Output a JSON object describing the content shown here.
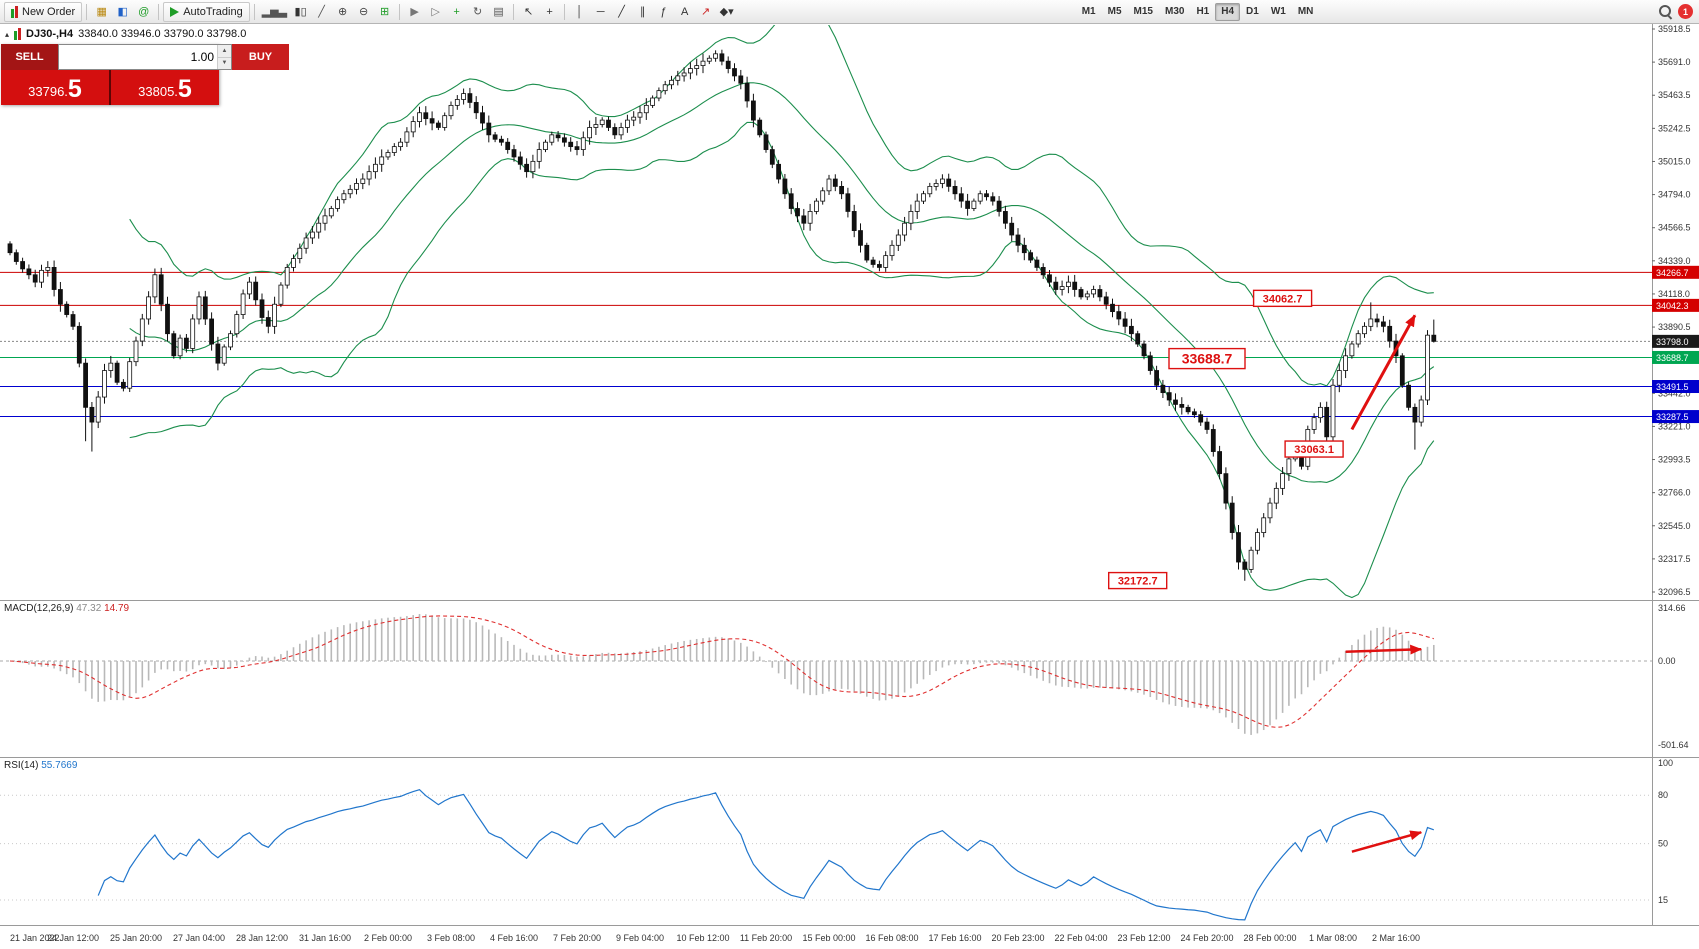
{
  "toolbar": {
    "new_order_label": "New Order",
    "autotrading_label": "AutoTrading",
    "timeframes": [
      "M1",
      "M5",
      "M15",
      "M30",
      "H1",
      "H4",
      "D1",
      "W1",
      "MN"
    ],
    "active_timeframe": "H4",
    "notification_count": "1",
    "icon_groups": {
      "tools": [
        {
          "name": "toolbox-icon",
          "glyph": "▦",
          "color": "#b8860b"
        },
        {
          "name": "navigator-icon",
          "glyph": "◧",
          "color": "#2061c8"
        },
        {
          "name": "expert-advisors-icon",
          "glyph": "@",
          "color": "#1f9d27"
        }
      ],
      "chart_types": [
        {
          "name": "bar-chart-icon",
          "glyph": "▂▅▃",
          "color": "#555555"
        },
        {
          "name": "candlestick-chart-icon",
          "glyph": "▮▯",
          "color": "#333333"
        },
        {
          "name": "line-chart-icon",
          "glyph": "╱",
          "color": "#555555"
        },
        {
          "name": "zoom-in-icon",
          "glyph": "⊕",
          "color": "#444444"
        },
        {
          "name": "zoom-out-icon",
          "glyph": "⊖",
          "color": "#444444"
        },
        {
          "name": "tile-windows-icon",
          "glyph": "⊞",
          "color": "#1f9d27"
        }
      ],
      "navigation": [
        {
          "name": "auto-scroll-icon",
          "glyph": "▶",
          "color": "#777777"
        },
        {
          "name": "chart-shift-icon",
          "glyph": "▷",
          "color": "#777777"
        },
        {
          "name": "new-chart-icon",
          "glyph": "+",
          "color": "#1f9d27"
        },
        {
          "name": "profiles-icon",
          "glyph": "↻",
          "color": "#555555"
        },
        {
          "name": "templates-icon",
          "glyph": "▤",
          "color": "#555555"
        }
      ],
      "cursor": [
        {
          "name": "cursor-icon",
          "glyph": "↖",
          "color": "#333333"
        },
        {
          "name": "crosshair-icon",
          "glyph": "+",
          "color": "#333333"
        }
      ],
      "drawing": [
        {
          "name": "vertical-line-icon",
          "glyph": "│",
          "color": "#333333"
        },
        {
          "name": "horizontal-line-icon",
          "glyph": "─",
          "color": "#333333"
        },
        {
          "name": "trendline-icon",
          "glyph": "╱",
          "color": "#333333"
        },
        {
          "name": "channel-icon",
          "glyph": "∥",
          "color": "#333333"
        },
        {
          "name": "fibonacci-icon",
          "glyph": "ƒ",
          "color": "#333333"
        },
        {
          "name": "text-icon",
          "glyph": "A",
          "color": "#333333"
        },
        {
          "name": "arrows-icon",
          "glyph": "↗",
          "color": "#cc2222"
        },
        {
          "name": "shapes-icon",
          "glyph": "◆▾",
          "color": "#333333"
        }
      ]
    }
  },
  "chart_title": {
    "collapse_icon": "▴",
    "symbol_period": "DJ30-,H4",
    "ohlc_values": "33840.0 33946.0 33790.0 33798.0"
  },
  "trade_panel": {
    "sell_label": "SELL",
    "buy_label": "BUY",
    "volume": "1.00",
    "sell_price": "33796.",
    "sell_price_big": "5",
    "buy_price": "33805.",
    "buy_price_big": "5"
  },
  "price_axis": {
    "top_value": 35918.5,
    "bottom_value": 32096.5,
    "labels": [
      "35918.5",
      "35691.0",
      "35463.5",
      "35242.5",
      "35015.0",
      "34794.0",
      "34566.5",
      "34339.0",
      "34118.0",
      "33890.5",
      "33669.0",
      "33442.0",
      "33221.0",
      "32993.5",
      "32766.0",
      "32545.0",
      "32317.5",
      "32096.5"
    ]
  },
  "levels": [
    {
      "value": "34266.7",
      "price": 34266.7,
      "line_color": "#cc0000",
      "badge_color": "#d40000"
    },
    {
      "value": "34042.3",
      "price": 34042.3,
      "line_color": "#cc0000",
      "badge_color": "#d40000"
    },
    {
      "value": "33688.7",
      "price": 33688.7,
      "line_color": "#00a651",
      "badge_color": "#00a651"
    },
    {
      "value": "33491.5",
      "price": 33491.5,
      "line_color": "#0000d0",
      "badge_color": "#0000cc"
    },
    {
      "value": "33287.5",
      "price": 33287.5,
      "line_color": "#0000d0",
      "badge_color": "#0000cc"
    }
  ],
  "current_price": {
    "value": "33798.0",
    "price": 33798.0,
    "badge_color": "#1a1a1a"
  },
  "annotations": [
    {
      "text": "34062.7",
      "bar": 202,
      "price": 34090,
      "large": false
    },
    {
      "text": "33688.7",
      "bar": 190,
      "price": 33681,
      "large": true
    },
    {
      "text": "33063.1",
      "bar": 207,
      "price": 33067,
      "large": false
    },
    {
      "text": "32172.7",
      "bar": 179,
      "price": 32174,
      "large": false
    }
  ],
  "arrows": {
    "color": "#e01010",
    "main": {
      "bar1": 213,
      "price1": 33200,
      "bar2": 223,
      "price2": 33975
    },
    "macd": {
      "bar1": 212,
      "value1": 55,
      "bar2": 224,
      "value2": 70
    },
    "rsi": {
      "bar1": 213,
      "value1": 45,
      "bar2": 224,
      "value2": 57
    }
  },
  "macd_pane": {
    "label": "MACD(12,26,9)",
    "main_value": "47.32",
    "signal_value": "14.79",
    "axis_labels": [
      "314.66",
      "0.00",
      "-501.64"
    ],
    "axis_values": [
      314.66,
      0,
      -501.64
    ]
  },
  "rsi_pane": {
    "label": "RSI(14)",
    "value": "55.7669",
    "axis_labels": [
      "100",
      "80",
      "50",
      "15"
    ],
    "axis_values": [
      100,
      80,
      50,
      15
    ],
    "level_lines": [
      80,
      50,
      15
    ]
  },
  "time_axis": {
    "labels": [
      "21 Jan 2022",
      "24 Jan 12:00",
      "25 Jan 20:00",
      "27 Jan 04:00",
      "28 Jan 12:00",
      "31 Jan 16:00",
      "2 Feb 00:00",
      "3 Feb 08:00",
      "4 Feb 16:00",
      "7 Feb 20:00",
      "9 Feb 04:00",
      "10 Feb 12:00",
      "11 Feb 20:00",
      "15 Feb 00:00",
      "16 Feb 08:00",
      "17 Feb 16:00",
      "20 Feb 23:00",
      "22 Feb 04:00",
      "23 Feb 12:00",
      "24 Feb 20:00",
      "28 Feb 00:00",
      "1 Mar 08:00",
      "2 Mar 16:00"
    ],
    "bars_per_label": 10
  },
  "chart_data": {
    "type": "candlestick",
    "symbol": "DJ30-",
    "timeframe": "H4",
    "title": "DJ30-,H4",
    "last_bar_ohlc": {
      "open": 33840.0,
      "high": 33946.0,
      "low": 33790.0,
      "close": 33798.0
    },
    "ylim": [
      32096.5,
      35918.5
    ],
    "closes": [
      34400,
      34340,
      34290,
      34250,
      34200,
      34280,
      34300,
      34150,
      34050,
      33980,
      33900,
      33650,
      33350,
      33250,
      33420,
      33600,
      33650,
      33520,
      33480,
      33660,
      33800,
      33950,
      34100,
      34250,
      34050,
      33850,
      33700,
      33820,
      33750,
      33950,
      34100,
      33950,
      33780,
      33650,
      33760,
      33850,
      33980,
      34120,
      34200,
      34080,
      33960,
      33900,
      34050,
      34180,
      34300,
      34360,
      34430,
      34500,
      34540,
      34600,
      34650,
      34700,
      34760,
      34800,
      34830,
      34870,
      34900,
      34950,
      35000,
      35050,
      35080,
      35120,
      35150,
      35220,
      35290,
      35350,
      35310,
      35280,
      35250,
      35330,
      35400,
      35440,
      35480,
      35420,
      35350,
      35280,
      35200,
      35170,
      35150,
      35100,
      35050,
      35000,
      34950,
      35020,
      35100,
      35150,
      35200,
      35180,
      35150,
      35120,
      35100,
      35180,
      35250,
      35270,
      35300,
      35250,
      35200,
      35250,
      35300,
      35320,
      35350,
      35400,
      35450,
      35500,
      35540,
      35570,
      35600,
      35620,
      35650,
      35670,
      35700,
      35720,
      35750,
      35700,
      35650,
      35600,
      35550,
      35430,
      35300,
      35200,
      35100,
      35000,
      34900,
      34800,
      34700,
      34650,
      34600,
      34680,
      34750,
      34820,
      34900,
      34850,
      34800,
      34680,
      34550,
      34450,
      34350,
      34320,
      34300,
      34380,
      34450,
      34520,
      34600,
      34680,
      34750,
      34800,
      34850,
      34870,
      34900,
      34850,
      34800,
      34750,
      34700,
      34750,
      34800,
      34780,
      34750,
      34680,
      34600,
      34520,
      34450,
      34400,
      34350,
      34300,
      34250,
      34200,
      34150,
      34170,
      34200,
      34150,
      34100,
      34120,
      34150,
      34100,
      34050,
      34000,
      33950,
      33900,
      33850,
      33780,
      33700,
      33600,
      33500,
      33450,
      33400,
      33370,
      33350,
      33320,
      33300,
      33250,
      33200,
      33050,
      32900,
      32700,
      32500,
      32300,
      32250,
      32380,
      32500,
      32600,
      32700,
      32800,
      32900,
      33000,
      33100,
      32950,
      33200,
      33280,
      33350,
      33150,
      33500,
      33600,
      33700,
      33780,
      33850,
      33900,
      33950,
      33930,
      33900,
      33800,
      33700,
      33500,
      33350,
      33250,
      33400,
      33840,
      33798
    ],
    "candle_overrides": [
      {
        "bar": 12,
        "low": 33120
      },
      {
        "bar": 13,
        "low": 33050
      },
      {
        "bar": 196,
        "low": 32172.7
      },
      {
        "bar": 216,
        "high": 34062.7
      },
      {
        "bar": 223,
        "low": 33063.1
      },
      {
        "bar": 226,
        "open": 33840,
        "high": 33946,
        "low": 33790,
        "close": 33798
      }
    ],
    "indicators": {
      "bollinger": {
        "period": 20,
        "deviation": 2,
        "color": "#1c8e4d"
      },
      "macd": {
        "fast": 12,
        "slow": 26,
        "signal": 9,
        "current_values": [
          47.32,
          14.79
        ]
      },
      "rsi": {
        "period": 14,
        "current_value": 55.7669
      }
    }
  }
}
